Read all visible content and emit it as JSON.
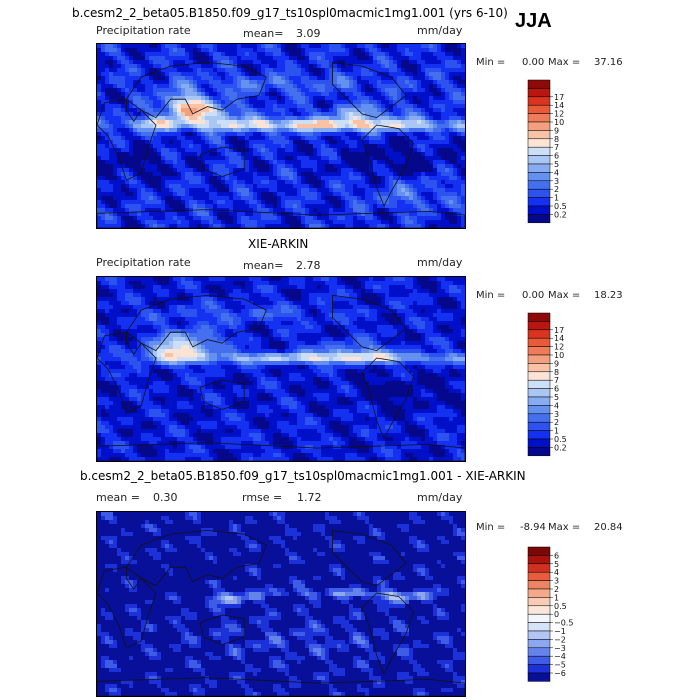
{
  "season": "JJA",
  "chart_data": [
    {
      "type": "heatmap",
      "title": "b.cesm2_2_beta05.B1850.f09_g17_ts10spl0macmic1mg1.001 (yrs 6-10)",
      "variable": "Precipitation rate",
      "mean_label": "mean=",
      "mean": "3.09",
      "units": "mm/day",
      "min_label": "Min =",
      "min": "0.00",
      "max_label": "Max =",
      "max": "37.16",
      "levels": [
        "0.2",
        "0.5",
        "1",
        "2",
        "3",
        "4",
        "5",
        "6",
        "7",
        "8",
        "9",
        "10",
        "12",
        "14",
        "17"
      ],
      "colors": [
        "#06088c",
        "#0010c8",
        "#1430f0",
        "#2c52f0",
        "#4470f0",
        "#6490f0",
        "#88acf2",
        "#aac6f4",
        "#cddff6",
        "#fbe4d6",
        "#f7c2a6",
        "#f3a07e",
        "#ef7c58",
        "#e85a38",
        "#d83420",
        "#b8160e",
        "#8c0a08"
      ],
      "field": "model"
    },
    {
      "type": "heatmap",
      "title": "XIE-ARKIN",
      "variable": "Precipitation rate",
      "mean_label": "mean=",
      "mean": "2.78",
      "units": "mm/day",
      "min_label": "Min =",
      "min": "0.00",
      "max_label": "Max =",
      "max": "18.23",
      "levels": [
        "0.2",
        "0.5",
        "1",
        "2",
        "3",
        "4",
        "5",
        "6",
        "7",
        "8",
        "9",
        "10",
        "12",
        "14",
        "17"
      ],
      "colors": [
        "#06088c",
        "#0010c8",
        "#1430f0",
        "#2c52f0",
        "#4470f0",
        "#6490f0",
        "#88acf2",
        "#aac6f4",
        "#cddff6",
        "#fbe4d6",
        "#f7c2a6",
        "#f3a07e",
        "#ef7c58",
        "#e85a38",
        "#d83420",
        "#b8160e",
        "#8c0a08"
      ],
      "field": "obs"
    },
    {
      "type": "heatmap",
      "title": "b.cesm2_2_beta05.B1850.f09_g17_ts10spl0macmic1mg1.001 - XIE-ARKIN",
      "mean_label": "mean =",
      "mean": "0.30",
      "rmse_label": "rmse =",
      "rmse": "1.72",
      "units": "mm/day",
      "min_label": "Min =",
      "min": "-8.94",
      "max_label": "Max =",
      "max": "20.84",
      "levels": [
        "−6",
        "−5",
        "−4",
        "−3",
        "−2",
        "−1",
        "−0.5",
        "0",
        "0.5",
        "1",
        "2",
        "3",
        "4",
        "5",
        "6"
      ],
      "colors": [
        "#08109a",
        "#1c32d8",
        "#3e5ce6",
        "#6484ec",
        "#8ca6f0",
        "#b2c6f4",
        "#d6e2f8",
        "#f3f6fa",
        "#fbe6da",
        "#f8ccb4",
        "#f4aa8a",
        "#ee8562",
        "#e65c3c",
        "#d03020",
        "#a8140c",
        "#7c0806"
      ],
      "field": "diff"
    }
  ]
}
